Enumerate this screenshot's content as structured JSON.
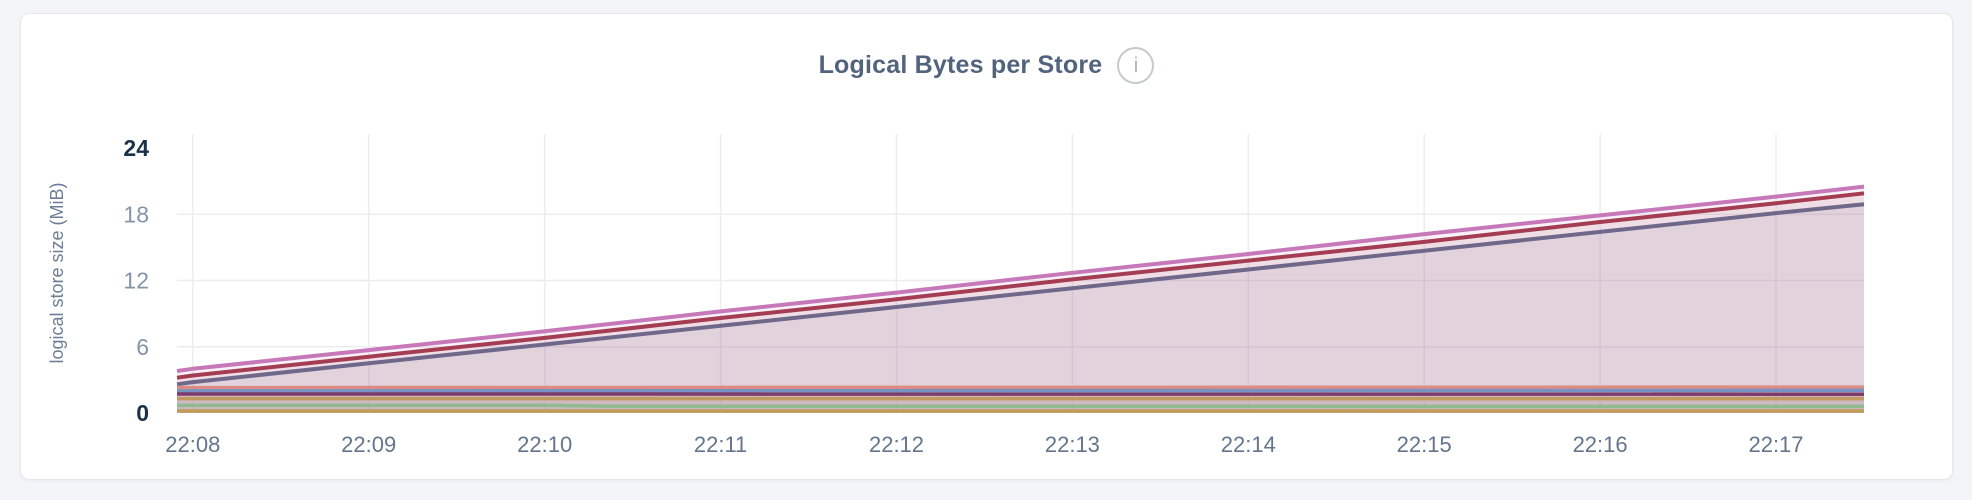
{
  "window": {
    "background": "#f3f5f9"
  },
  "card": {
    "background": "#ffffff",
    "border_color": "#e6e7eb"
  },
  "header": {
    "title": "Logical Bytes per Store",
    "info_icon": "i"
  },
  "colors": {
    "grid": "#ededf0",
    "y_tick_label": "#8494a9",
    "y_tick_label_emphasis": "#1b3147",
    "x_tick_label": "#64758d",
    "axis_label": "#6d7d95",
    "title": "#52637e",
    "info_icon": "#c0c3c9"
  },
  "chart_data": {
    "type": "area",
    "title": "Logical Bytes per Store",
    "ylabel": "logical store size (MiB)",
    "ylim": [
      0,
      24
    ],
    "yticks": [
      0,
      6,
      12,
      18,
      24
    ],
    "emphasized_yticks": [
      0,
      24
    ],
    "xticks": [
      "22:08",
      "22:09",
      "22:10",
      "22:11",
      "22:12",
      "22:13",
      "22:14",
      "22:15",
      "22:16",
      "22:17"
    ],
    "x_minutes_range": [
      -0.09,
      9.5
    ],
    "grid": true,
    "legend": "none",
    "units": "MiB",
    "series": [
      {
        "name": "series-1",
        "color": "#c678b8",
        "width": 4,
        "fill_opacity": 0.1,
        "points": [
          [
            -0.09,
            3.8
          ],
          [
            0,
            4.0
          ],
          [
            1,
            5.7
          ],
          [
            2,
            7.4
          ],
          [
            3,
            9.2
          ],
          [
            4,
            10.9
          ],
          [
            5,
            12.7
          ],
          [
            6,
            14.4
          ],
          [
            7,
            16.2
          ],
          [
            8,
            17.9
          ],
          [
            9,
            19.6
          ],
          [
            9.5,
            20.5
          ]
        ]
      },
      {
        "name": "series-2",
        "color": "#a43d53",
        "width": 4,
        "fill_opacity": 0.1,
        "points": [
          [
            -0.09,
            3.2
          ],
          [
            0,
            3.4
          ],
          [
            1,
            5.1
          ],
          [
            2,
            6.8
          ],
          [
            3,
            8.6
          ],
          [
            4,
            10.3
          ],
          [
            5,
            12.1
          ],
          [
            6,
            13.8
          ],
          [
            7,
            15.5
          ],
          [
            8,
            17.3
          ],
          [
            9,
            19.0
          ],
          [
            9.5,
            19.9
          ]
        ]
      },
      {
        "name": "series-3",
        "color": "#70688a",
        "width": 4,
        "fill_opacity": 0.1,
        "points": [
          [
            -0.09,
            2.6
          ],
          [
            0,
            2.8
          ],
          [
            1,
            4.5
          ],
          [
            2,
            6.2
          ],
          [
            3,
            7.9
          ],
          [
            4,
            9.6
          ],
          [
            5,
            11.3
          ],
          [
            6,
            13.0
          ],
          [
            7,
            14.7
          ],
          [
            8,
            16.4
          ],
          [
            9,
            18.1
          ],
          [
            9.5,
            18.9
          ]
        ]
      },
      {
        "name": "series-4",
        "color": "#dc8b83",
        "width": 3.5,
        "fill_opacity": 0.08,
        "points": [
          [
            -0.09,
            2.3
          ],
          [
            9.5,
            2.35
          ]
        ]
      },
      {
        "name": "series-5",
        "color": "#7693c4",
        "width": 3.5,
        "fill_opacity": 0.08,
        "points": [
          [
            -0.09,
            2.0
          ],
          [
            9.5,
            2.05
          ]
        ]
      },
      {
        "name": "series-6",
        "color": "#7f3c6a",
        "width": 3.5,
        "fill_opacity": 0.08,
        "points": [
          [
            -0.09,
            1.72
          ],
          [
            9.5,
            1.7
          ]
        ]
      },
      {
        "name": "series-7",
        "color": "#c29a60",
        "width": 3.5,
        "fill_opacity": 0.08,
        "points": [
          [
            -0.09,
            1.3
          ],
          [
            9.5,
            1.3
          ]
        ]
      },
      {
        "name": "series-8",
        "color": "#8fba92",
        "width": 3.5,
        "fill_opacity": 0.08,
        "points": [
          [
            -0.09,
            0.7
          ],
          [
            2,
            0.7
          ],
          [
            2.4,
            0.62
          ],
          [
            9.5,
            0.6
          ]
        ]
      },
      {
        "name": "series-9",
        "color": "#c49a58",
        "width": 3.5,
        "fill_opacity": 0.08,
        "points": [
          [
            -0.09,
            0.18
          ],
          [
            9.5,
            0.18
          ]
        ]
      }
    ]
  }
}
